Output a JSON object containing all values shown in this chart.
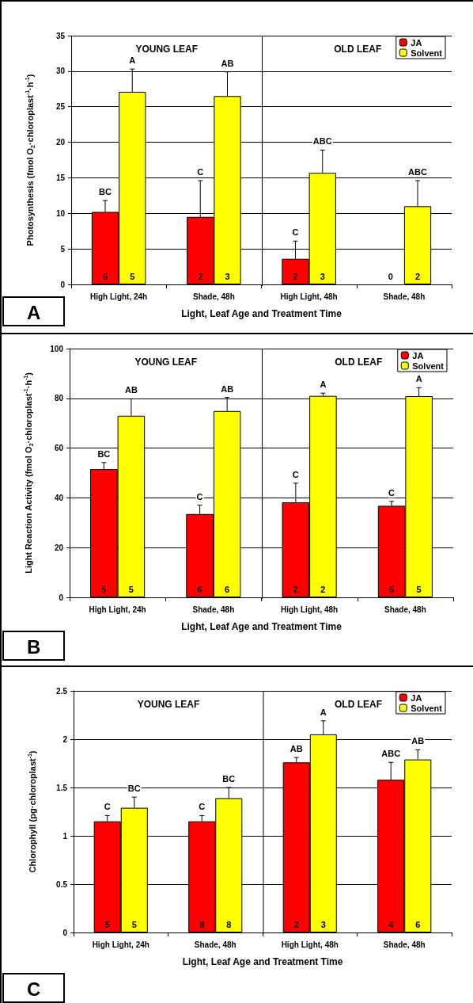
{
  "chart_data": [
    {
      "type": "bar",
      "title": "A",
      "xlabel": "Light, Leaf Age and Treatment Time",
      "ylabel": "Photosynthesis (fmol O$_{2}$·chloroplast$^{-1}$·h$^{-1}$)",
      "categories": [
        "High Light, 24h",
        "Shade, 48h",
        "High Light, 48h",
        "Shade, 48h"
      ],
      "series": [
        {
          "name": "JA",
          "color": "#ff0000",
          "values": [
            10.2,
            9.5,
            3.6,
            0
          ],
          "errors": [
            [
              10.2,
              11.8
            ],
            [
              9.5,
              14.6
            ],
            [
              3.6,
              6.1
            ],
            null
          ]
        },
        {
          "name": "Solvent",
          "color": "#ffff00",
          "values": [
            27.1,
            26.5,
            15.7,
            11.0
          ],
          "errors": [
            [
              27.1,
              30.3
            ],
            [
              26.5,
              29.9
            ],
            [
              15.7,
              18.9
            ],
            [
              11.0,
              14.6
            ]
          ]
        }
      ],
      "ylim": [
        0,
        35
      ],
      "yticks": [
        0,
        5,
        10,
        15,
        20,
        25,
        30,
        35
      ],
      "grid": "y",
      "legend": "top right",
      "annotations": [
        "YOUNG LEAF",
        "OLD LEAF",
        "BC",
        "A",
        "C",
        "AB",
        "C",
        "ABC",
        "ABC",
        "5",
        "5",
        "2",
        "3",
        "2",
        "3",
        "0",
        "2"
      ]
    },
    {
      "type": "bar",
      "title": "B",
      "xlabel": "Light, Leaf Age and Treatment Time",
      "ylabel": "Light Reaction Activity (fmol O$_{2}$·chloroplast$^{-1}$·h$^{-1}$)",
      "categories": [
        "High Light, 24h",
        "Shade, 48h",
        "High Light, 48h",
        "Shade, 48h"
      ],
      "series": [
        {
          "name": "JA",
          "color": "#ff0000",
          "values": [
            51.6,
            33.5,
            38.2,
            36.8
          ],
          "errors": [
            [
              51.6,
              54.2
            ],
            [
              33.5,
              37.1
            ],
            [
              38.2,
              45.9
            ],
            [
              36.8,
              38.6
            ]
          ]
        },
        {
          "name": "Solvent",
          "color": "#ffff00",
          "values": [
            73.0,
            74.9,
            81.0,
            80.9
          ],
          "errors": [
            [
              73.0,
              79.8
            ],
            [
              74.9,
              80.4
            ],
            [
              81.0,
              82.1
            ],
            [
              80.9,
              84.3
            ]
          ]
        }
      ],
      "ylim": [
        0,
        100
      ],
      "yticks": [
        0,
        20,
        40,
        60,
        80,
        100
      ],
      "grid": "y",
      "legend": "top right",
      "annotations": [
        "YOUNG LEAF",
        "OLD LEAF",
        "BC",
        "AB",
        "C",
        "AB",
        "C",
        "A",
        "C",
        "A",
        "5",
        "5",
        "6",
        "6",
        "2",
        "2",
        "5",
        "5"
      ]
    },
    {
      "type": "bar",
      "title": "C",
      "xlabel": "Light, Leaf Age and Treatment Time",
      "ylabel": "Chlorophyll (pg·chloroplast$^{-1}$)",
      "categories": [
        "High Light, 24h",
        "Shade, 48h",
        "High Light, 48h",
        "Shade, 48h"
      ],
      "series": [
        {
          "name": "JA",
          "color": "#ff0000",
          "values": [
            1.15,
            1.15,
            1.76,
            1.58
          ],
          "errors": [
            [
              1.15,
              1.21
            ],
            [
              1.15,
              1.21
            ],
            [
              1.76,
              1.81
            ],
            [
              1.58,
              1.76
            ]
          ]
        },
        {
          "name": "Solvent",
          "color": "#ffff00",
          "values": [
            1.29,
            1.39,
            2.05,
            1.79
          ],
          "errors": [
            [
              1.29,
              1.4
            ],
            [
              1.39,
              1.5
            ],
            [
              2.05,
              2.19
            ],
            [
              1.79,
              1.89
            ]
          ]
        }
      ],
      "ylim": [
        0,
        2.5
      ],
      "yticks": [
        0,
        0.5,
        1,
        1.5,
        2,
        2.5
      ],
      "grid": "y",
      "legend": "top right",
      "annotations": [
        "YOUNG LEAF",
        "OLD LEAF",
        "C",
        "BC",
        "C",
        "BC",
        "AB",
        "A",
        "ABC",
        "AB",
        "5",
        "5",
        "8",
        "8",
        "2",
        "3",
        "4",
        "6"
      ]
    }
  ]
}
